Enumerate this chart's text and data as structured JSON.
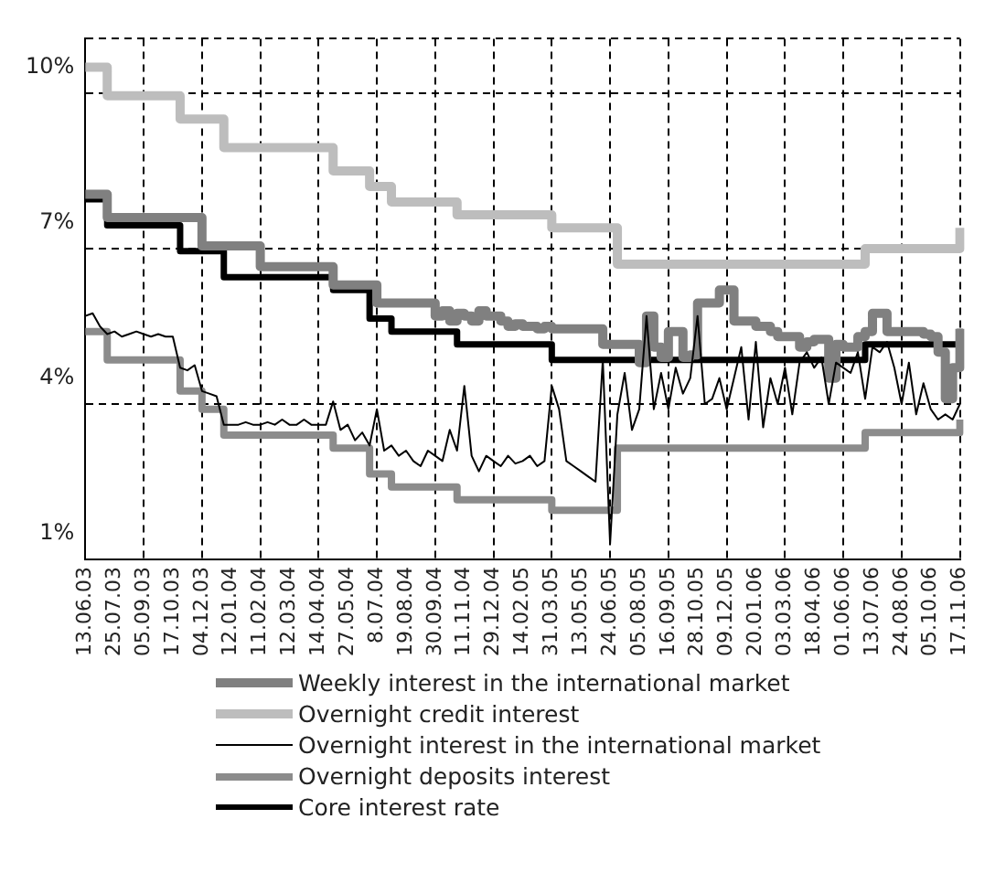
{
  "chart_data": {
    "type": "line",
    "categories": [
      "13.06.03",
      null,
      null,
      null,
      "25.07.03",
      null,
      null,
      null,
      "05.09.03",
      null,
      null,
      null,
      "17.10.03",
      null,
      null,
      null,
      "04.12.03",
      null,
      null,
      null,
      "12.01.04",
      null,
      null,
      null,
      "11.02.04",
      null,
      null,
      null,
      "12.03.04",
      null,
      null,
      null,
      "14.04.04",
      null,
      null,
      null,
      "27.05.04",
      null,
      null,
      null,
      "8.07.04",
      null,
      null,
      null,
      "19.08.04",
      null,
      null,
      null,
      "30.09.04",
      null,
      null,
      null,
      "11.11.04",
      null,
      null,
      null,
      "29.12.04",
      null,
      null,
      null,
      "14.02.05",
      null,
      null,
      null,
      "31.03.05",
      null,
      null,
      null,
      "13.05.05",
      null,
      null,
      null,
      "24.06.05",
      null,
      null,
      null,
      "05.08.05",
      null,
      null,
      null,
      "16.09.05",
      null,
      null,
      null,
      "28.10.05",
      null,
      null,
      null,
      "09.12.05",
      null,
      null,
      null,
      "20.01.06",
      null,
      null,
      null,
      "03.03.06",
      null,
      null,
      null,
      "18.04.06",
      null,
      null,
      null,
      "01.06.06",
      null,
      null,
      null,
      "13.07.06",
      null,
      null,
      null,
      "24.08.06",
      null,
      null,
      null,
      "05.10.06",
      null,
      null,
      null,
      "17.11.06"
    ],
    "series": [
      {
        "name": "Weekly interest in the international market",
        "type": "step",
        "color": "#808080",
        "values": [
          7.55,
          7.55,
          7.55,
          7.1,
          7.1,
          7.1,
          7.1,
          7.1,
          7.1,
          7.1,
          7.1,
          7.1,
          7.1,
          7.1,
          7.1,
          7.1,
          6.55,
          6.55,
          6.55,
          6.55,
          6.55,
          6.55,
          6.55,
          6.55,
          6.15,
          6.15,
          6.15,
          6.15,
          6.15,
          6.15,
          6.15,
          6.15,
          6.15,
          6.15,
          5.8,
          5.8,
          5.8,
          5.8,
          5.8,
          5.8,
          5.45,
          5.45,
          5.45,
          5.45,
          5.45,
          5.45,
          5.45,
          5.45,
          5.2,
          5.3,
          5.1,
          5.25,
          5.2,
          5.1,
          5.3,
          5.2,
          5.2,
          5.1,
          5.0,
          5.05,
          5.0,
          5.0,
          4.95,
          5.0,
          4.95,
          4.95,
          4.95,
          4.95,
          4.95,
          4.95,
          4.95,
          4.65,
          4.65,
          4.65,
          4.65,
          4.65,
          4.3,
          5.2,
          4.6,
          4.4,
          4.9,
          4.9,
          4.4,
          4.45,
          5.45,
          5.45,
          5.45,
          5.7,
          5.7,
          5.1,
          5.1,
          5.1,
          5.0,
          5.0,
          4.9,
          4.8,
          4.8,
          4.8,
          4.6,
          4.7,
          4.75,
          4.75,
          4.0,
          4.65,
          4.6,
          4.6,
          4.8,
          4.9,
          5.25,
          5.25,
          4.9,
          4.9,
          4.9,
          4.9,
          4.9,
          4.85,
          4.8,
          4.5,
          3.6,
          4.2,
          4.95
        ]
      },
      {
        "name": "Overnight credit interest",
        "type": "step",
        "color": "#bdbdbd",
        "values": [
          10,
          10,
          10,
          9.45,
          9.45,
          9.45,
          9.45,
          9.45,
          9.45,
          9.45,
          9.45,
          9.45,
          9.45,
          9.0,
          9.0,
          9.0,
          9.0,
          9.0,
          9.0,
          8.45,
          8.45,
          8.45,
          8.45,
          8.45,
          8.45,
          8.45,
          8.45,
          8.45,
          8.45,
          8.45,
          8.45,
          8.45,
          8.45,
          8.45,
          8.0,
          8.0,
          8.0,
          8.0,
          8.0,
          7.7,
          7.7,
          7.7,
          7.4,
          7.4,
          7.4,
          7.4,
          7.4,
          7.4,
          7.4,
          7.4,
          7.4,
          7.15,
          7.15,
          7.15,
          7.15,
          7.15,
          7.15,
          7.15,
          7.15,
          7.15,
          7.15,
          7.15,
          7.15,
          7.15,
          6.9,
          6.9,
          6.9,
          6.9,
          6.9,
          6.9,
          6.9,
          6.9,
          6.9,
          6.2,
          6.2,
          6.2,
          6.2,
          6.2,
          6.2,
          6.2,
          6.2,
          6.2,
          6.2,
          6.2,
          6.2,
          6.2,
          6.2,
          6.2,
          6.2,
          6.2,
          6.2,
          6.2,
          6.2,
          6.2,
          6.2,
          6.2,
          6.2,
          6.2,
          6.2,
          6.2,
          6.2,
          6.2,
          6.2,
          6.2,
          6.2,
          6.2,
          6.2,
          6.5,
          6.5,
          6.5,
          6.5,
          6.5,
          6.5,
          6.5,
          6.5,
          6.5,
          6.5,
          6.5,
          6.5,
          6.5,
          6.9
        ]
      },
      {
        "name": "Overnight interest in the international market",
        "type": "line",
        "color": "#000000",
        "values": [
          5.2,
          5.25,
          5.0,
          4.85,
          4.9,
          4.8,
          4.85,
          4.9,
          4.85,
          4.8,
          4.85,
          4.8,
          4.8,
          4.2,
          4.15,
          4.25,
          3.75,
          3.7,
          3.65,
          3.1,
          3.1,
          3.1,
          3.15,
          3.1,
          3.1,
          3.15,
          3.1,
          3.2,
          3.1,
          3.1,
          3.2,
          3.1,
          3.1,
          3.1,
          3.55,
          3.0,
          3.1,
          2.8,
          2.95,
          2.7,
          3.4,
          2.6,
          2.7,
          2.5,
          2.6,
          2.4,
          2.3,
          2.6,
          2.5,
          2.4,
          3.0,
          2.6,
          3.85,
          2.5,
          2.2,
          2.5,
          2.4,
          2.3,
          2.5,
          2.35,
          2.4,
          2.5,
          2.3,
          2.4,
          3.85,
          3.4,
          2.4,
          2.3,
          2.2,
          2.1,
          2.0,
          4.35,
          0.8,
          3.3,
          4.1,
          3.0,
          3.4,
          5.2,
          3.4,
          4.1,
          3.4,
          4.2,
          3.7,
          4.0,
          5.2,
          3.5,
          3.6,
          4.0,
          3.4,
          4.0,
          4.6,
          3.2,
          4.7,
          3.05,
          4.0,
          3.5,
          4.2,
          3.3,
          4.3,
          4.5,
          4.2,
          4.4,
          3.5,
          4.3,
          4.2,
          4.1,
          4.5,
          3.6,
          4.6,
          4.5,
          4.7,
          4.2,
          3.5,
          4.3,
          3.3,
          3.9,
          3.4,
          3.2,
          3.3,
          3.2,
          3.5
        ]
      },
      {
        "name": "Overnight deposits interest",
        "type": "step",
        "color": "#8c8c8c",
        "values": [
          4.9,
          4.9,
          4.9,
          4.35,
          4.35,
          4.35,
          4.35,
          4.35,
          4.35,
          4.35,
          4.35,
          4.35,
          4.35,
          3.75,
          3.75,
          3.75,
          3.4,
          3.4,
          3.4,
          2.9,
          2.9,
          2.9,
          2.9,
          2.9,
          2.9,
          2.9,
          2.9,
          2.9,
          2.9,
          2.9,
          2.9,
          2.9,
          2.9,
          2.9,
          2.65,
          2.65,
          2.65,
          2.65,
          2.65,
          2.15,
          2.15,
          2.15,
          1.9,
          1.9,
          1.9,
          1.9,
          1.9,
          1.9,
          1.9,
          1.9,
          1.9,
          1.65,
          1.65,
          1.65,
          1.65,
          1.65,
          1.65,
          1.65,
          1.65,
          1.65,
          1.65,
          1.65,
          1.65,
          1.65,
          1.45,
          1.45,
          1.45,
          1.45,
          1.45,
          1.45,
          1.45,
          1.45,
          1.45,
          2.65,
          2.65,
          2.65,
          2.65,
          2.65,
          2.65,
          2.65,
          2.65,
          2.65,
          2.65,
          2.65,
          2.65,
          2.65,
          2.65,
          2.65,
          2.65,
          2.65,
          2.65,
          2.65,
          2.65,
          2.65,
          2.65,
          2.65,
          2.65,
          2.65,
          2.65,
          2.65,
          2.65,
          2.65,
          2.65,
          2.65,
          2.65,
          2.65,
          2.65,
          2.95,
          2.95,
          2.95,
          2.95,
          2.95,
          2.95,
          2.95,
          2.95,
          2.95,
          2.95,
          2.95,
          2.95,
          2.95,
          3.2
        ]
      },
      {
        "name": "Core interest rate",
        "type": "step",
        "color": "#000000",
        "values": [
          7.45,
          7.45,
          7.45,
          6.95,
          6.95,
          6.95,
          6.95,
          6.95,
          6.95,
          6.95,
          6.95,
          6.95,
          6.95,
          6.45,
          6.45,
          6.45,
          6.45,
          6.45,
          6.45,
          5.95,
          5.95,
          5.95,
          5.95,
          5.95,
          5.95,
          5.95,
          5.95,
          5.95,
          5.95,
          5.95,
          5.95,
          5.95,
          5.95,
          5.95,
          5.7,
          5.7,
          5.7,
          5.7,
          5.7,
          5.15,
          5.15,
          5.15,
          4.9,
          4.9,
          4.9,
          4.9,
          4.9,
          4.9,
          4.9,
          4.9,
          4.9,
          4.65,
          4.65,
          4.65,
          4.65,
          4.65,
          4.65,
          4.65,
          4.65,
          4.65,
          4.65,
          4.65,
          4.65,
          4.65,
          4.35,
          4.35,
          4.35,
          4.35,
          4.35,
          4.35,
          4.35,
          4.35,
          4.35,
          4.35,
          4.35,
          4.35,
          4.35,
          4.35,
          4.35,
          4.35,
          4.35,
          4.35,
          4.35,
          4.35,
          4.35,
          4.35,
          4.35,
          4.35,
          4.35,
          4.35,
          4.35,
          4.35,
          4.35,
          4.35,
          4.35,
          4.35,
          4.35,
          4.35,
          4.35,
          4.35,
          4.35,
          4.35,
          4.35,
          4.35,
          4.35,
          4.35,
          4.35,
          4.65,
          4.65,
          4.65,
          4.65,
          4.65,
          4.65,
          4.65,
          4.65,
          4.65,
          4.65,
          4.65,
          4.65,
          4.65,
          4.95
        ]
      }
    ],
    "ylim": [
      0.5,
      10.55
    ],
    "yticks": [
      {
        "value": 0.5,
        "label": null
      },
      {
        "value": 1,
        "label": "1%"
      },
      {
        "value": 3.5,
        "label": null
      },
      {
        "value": 4,
        "label": "4%"
      },
      {
        "value": 6.5,
        "label": null
      },
      {
        "value": 7,
        "label": "7%"
      },
      {
        "value": 9.5,
        "label": null
      },
      {
        "value": 10,
        "label": "10%"
      },
      {
        "value": 10.55,
        "label": null
      }
    ],
    "grid": true,
    "legend": "bottom"
  }
}
